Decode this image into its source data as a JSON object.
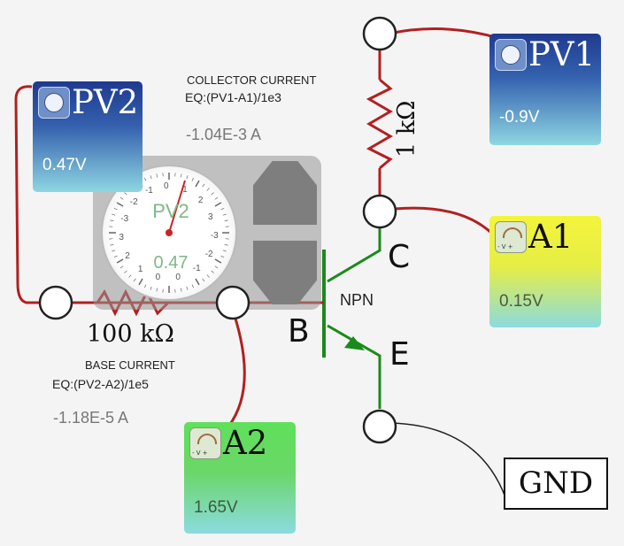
{
  "pv1": {
    "title": "PV1",
    "value": "-0.9V",
    "icon": "pv-source-icon"
  },
  "pv2": {
    "title": "PV2",
    "value": "0.47V",
    "icon": "pv-source-icon"
  },
  "a1": {
    "title": "A1",
    "value": "0.15V",
    "icon": "voltmeter-icon"
  },
  "a2": {
    "title": "A2",
    "value": "1.65V",
    "icon": "voltmeter-icon"
  },
  "gnd": "GND",
  "collector": {
    "heading": "COLLECTOR CURRENT",
    "equation": "EQ:(PV1-A1)/1e3",
    "reading": "-1.04E-3 A"
  },
  "base": {
    "heading": "BASE CURRENT",
    "equation": "EQ:(PV2-A2)/1e5",
    "reading": "-1.18E-5 A"
  },
  "resistor_collector": "1 kΩ",
  "resistor_base": "100 kΩ",
  "transistor": {
    "type": "NPN",
    "collector": "C",
    "base": "B",
    "emitter": "E"
  },
  "dial": {
    "title": "PV2",
    "value": "0.47",
    "ticks": [
      "0",
      "1",
      "2",
      "3",
      "-3",
      "-2",
      "-1",
      "0",
      "1",
      "2",
      "3",
      "-3",
      "-2",
      "-1",
      "0"
    ]
  },
  "colors": {
    "wire_red": "#b31f1f",
    "wire_green": "#1a8a1a",
    "wire_black": "#222222"
  }
}
